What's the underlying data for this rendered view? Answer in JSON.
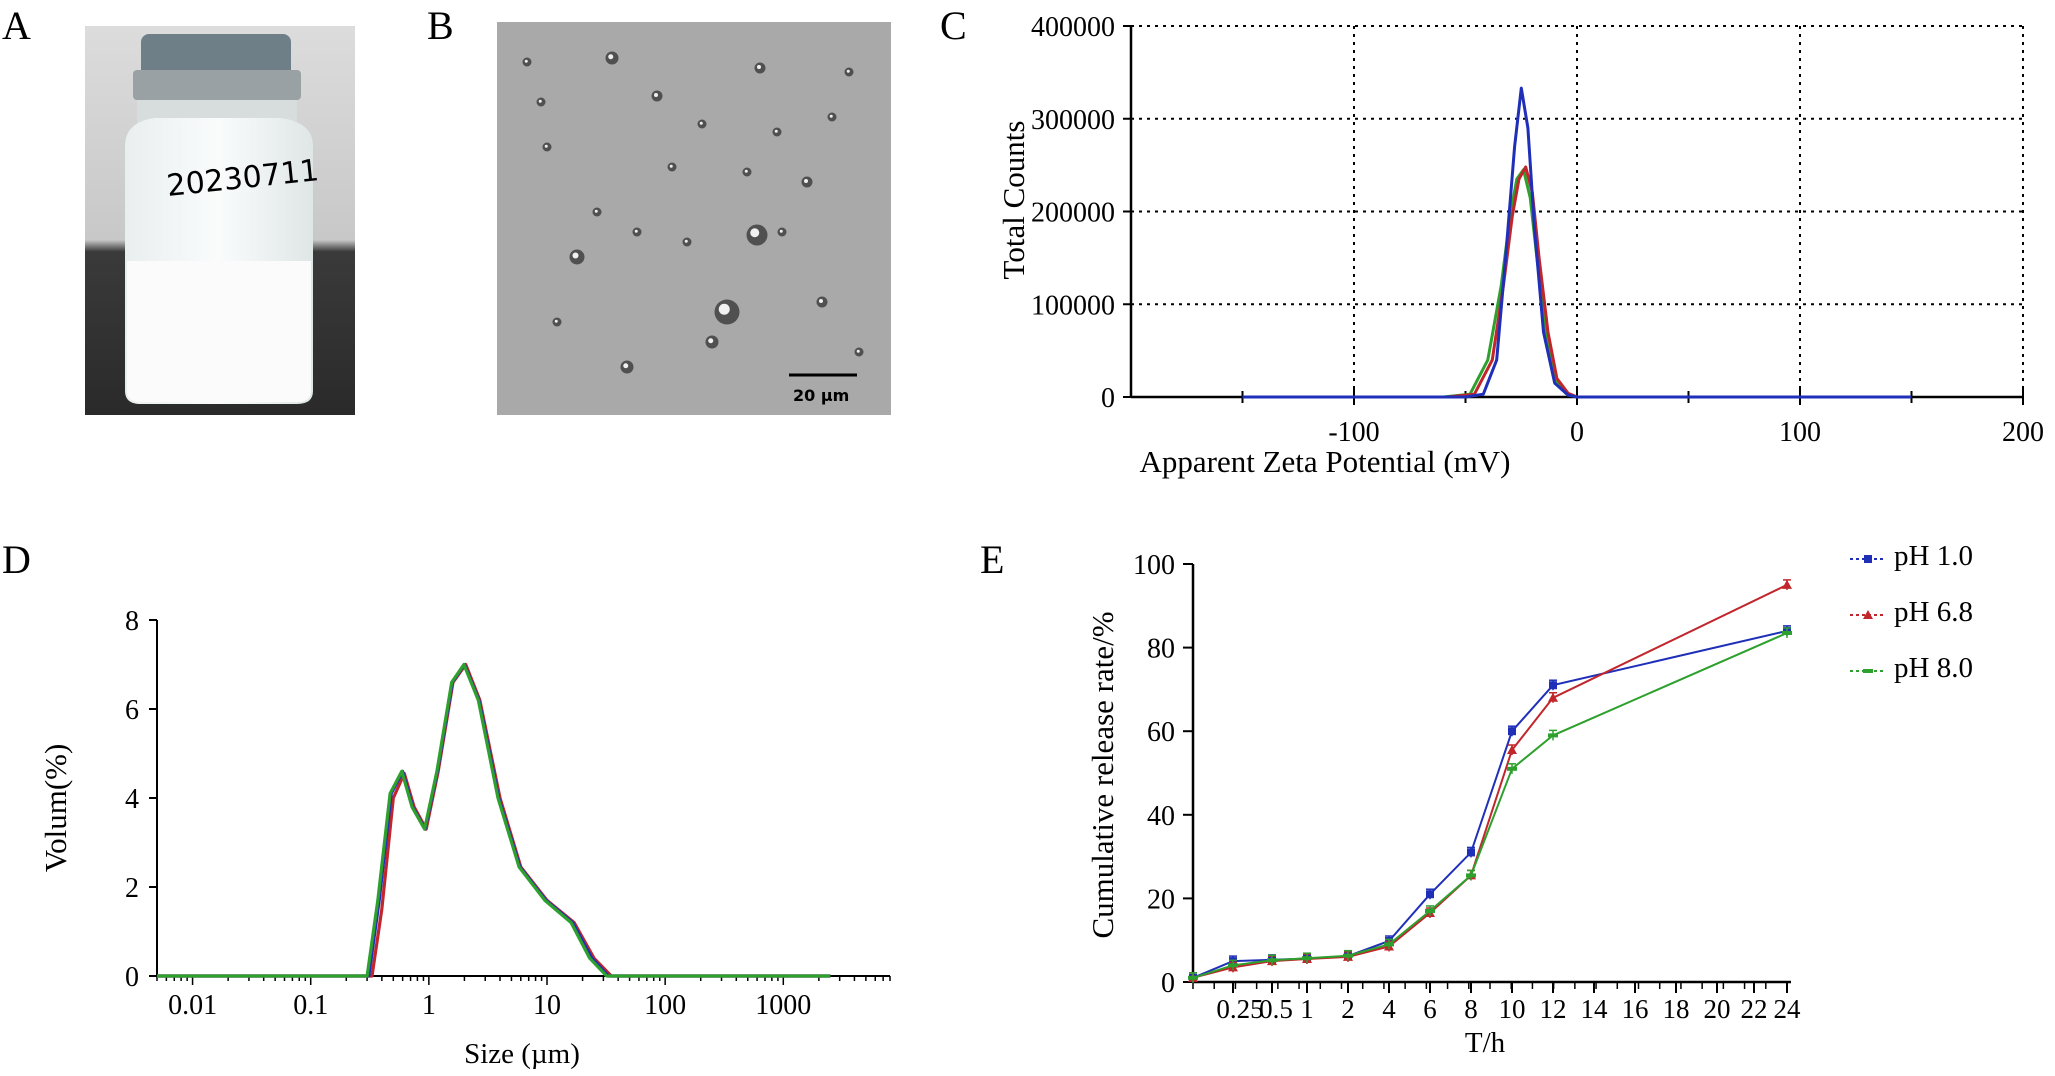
{
  "panels": {
    "a": {
      "letter": "A",
      "vial_label": "20230711"
    },
    "b": {
      "letter": "B",
      "scale_bar": "20 µm"
    },
    "c": {
      "letter": "C"
    },
    "d": {
      "letter": "D"
    },
    "e": {
      "letter": "E"
    }
  },
  "colors": {
    "blue": "#1f2fb8",
    "red": "#c0262b",
    "green": "#2ea02e",
    "grid": "#000000"
  },
  "chart_data": [
    {
      "id": "C",
      "type": "line",
      "xlabel": "Apparent Zeta Potential (mV)",
      "ylabel": "Total Counts",
      "xlim": [
        -200,
        200
      ],
      "ylim": [
        0,
        400000
      ],
      "x_ticks": [
        "-100",
        "0",
        "100",
        "200"
      ],
      "y_ticks": [
        "0",
        "100000",
        "200000",
        "300000",
        "400000"
      ],
      "grid": "dotted",
      "series": [
        {
          "color": "#2ea02e",
          "points": [
            [
              -150,
              0
            ],
            [
              -60,
              0
            ],
            [
              -48,
              3000
            ],
            [
              -40,
              40000
            ],
            [
              -34,
              120000
            ],
            [
              -30,
              195000
            ],
            [
              -27,
              235000
            ],
            [
              -24,
              245000
            ],
            [
              -21,
              215000
            ],
            [
              -18,
              150000
            ],
            [
              -14,
              70000
            ],
            [
              -10,
              20000
            ],
            [
              -5,
              4000
            ],
            [
              0,
              0
            ],
            [
              150,
              0
            ]
          ]
        },
        {
          "color": "#c0262b",
          "points": [
            [
              -150,
              0
            ],
            [
              -58,
              0
            ],
            [
              -46,
              3000
            ],
            [
              -38,
              40000
            ],
            [
              -33,
              120000
            ],
            [
              -29,
              195000
            ],
            [
              -26,
              235000
            ],
            [
              -23,
              248000
            ],
            [
              -20,
              220000
            ],
            [
              -17,
              150000
            ],
            [
              -13,
              70000
            ],
            [
              -9,
              20000
            ],
            [
              -4,
              4000
            ],
            [
              0,
              0
            ],
            [
              150,
              0
            ]
          ]
        },
        {
          "color": "#1f2fb8",
          "points": [
            [
              -150,
              0
            ],
            [
              -50,
              0
            ],
            [
              -42,
              3000
            ],
            [
              -36,
              40000
            ],
            [
              -32,
              150000
            ],
            [
              -28,
              270000
            ],
            [
              -25,
              333000
            ],
            [
              -22,
              290000
            ],
            [
              -19,
              180000
            ],
            [
              -15,
              70000
            ],
            [
              -10,
              15000
            ],
            [
              -4,
              2000
            ],
            [
              0,
              0
            ],
            [
              150,
              0
            ]
          ]
        }
      ]
    },
    {
      "id": "D",
      "type": "line",
      "xlabel": "Size (µm)",
      "ylabel": "Volum(%)",
      "xscale": "log",
      "xlim": [
        0.005,
        8000
      ],
      "ylim": [
        0,
        8
      ],
      "x_ticks": [
        "0.01",
        "0.1",
        "1",
        "10",
        "100",
        "1000"
      ],
      "y_ticks": [
        "0",
        "2",
        "4",
        "6",
        "8"
      ],
      "series": [
        {
          "color": "#c0262b",
          "points": [
            [
              0.005,
              0
            ],
            [
              0.33,
              0
            ],
            [
              0.4,
              1.5
            ],
            [
              0.5,
              4.0
            ],
            [
              0.62,
              4.55
            ],
            [
              0.75,
              3.8
            ],
            [
              0.95,
              3.3
            ],
            [
              1.2,
              4.6
            ],
            [
              1.6,
              6.6
            ],
            [
              2.05,
              7.0
            ],
            [
              2.7,
              6.2
            ],
            [
              4,
              4.0
            ],
            [
              6,
              2.45
            ],
            [
              10,
              1.7
            ],
            [
              17,
              1.2
            ],
            [
              25,
              0.4
            ],
            [
              35,
              0
            ],
            [
              2500,
              0
            ]
          ]
        },
        {
          "color": "#1f2fb8",
          "points": [
            [
              0.005,
              0
            ],
            [
              0.31,
              0
            ],
            [
              0.38,
              1.7
            ],
            [
              0.48,
              4.1
            ],
            [
              0.6,
              4.6
            ],
            [
              0.73,
              3.8
            ],
            [
              0.93,
              3.3
            ],
            [
              1.18,
              4.6
            ],
            [
              1.58,
              6.6
            ],
            [
              2.0,
              7.0
            ],
            [
              2.65,
              6.2
            ],
            [
              3.9,
              4.0
            ],
            [
              5.9,
              2.45
            ],
            [
              9.8,
              1.7
            ],
            [
              16.5,
              1.2
            ],
            [
              24,
              0.4
            ],
            [
              33,
              0
            ],
            [
              2500,
              0
            ]
          ]
        },
        {
          "color": "#2ea02e",
          "points": [
            [
              0.005,
              0
            ],
            [
              0.3,
              0
            ],
            [
              0.37,
              1.7
            ],
            [
              0.47,
              4.1
            ],
            [
              0.59,
              4.6
            ],
            [
              0.72,
              3.8
            ],
            [
              0.92,
              3.3
            ],
            [
              1.17,
              4.6
            ],
            [
              1.56,
              6.6
            ],
            [
              1.98,
              7.0
            ],
            [
              2.62,
              6.2
            ],
            [
              3.85,
              4.0
            ],
            [
              5.8,
              2.45
            ],
            [
              9.6,
              1.7
            ],
            [
              16,
              1.2
            ],
            [
              23,
              0.4
            ],
            [
              32,
              0
            ],
            [
              2500,
              0
            ]
          ]
        }
      ]
    },
    {
      "id": "E",
      "type": "line",
      "xlabel": "T/h",
      "ylabel": "Cumulative release rate/%",
      "xlim": [
        0,
        24
      ],
      "ylim": [
        0,
        100
      ],
      "x_ticks": [
        "0.25",
        "0.5",
        "1",
        "2",
        "4",
        "6",
        "8",
        "10",
        "12",
        "14",
        "16",
        "18",
        "20",
        "22",
        "24"
      ],
      "y_ticks": [
        "0",
        "20",
        "40",
        "60",
        "80",
        "100"
      ],
      "x": [
        0,
        0.25,
        0.5,
        1,
        2,
        4,
        6,
        8,
        10,
        12,
        24
      ],
      "series": [
        {
          "name": "pH 1.0",
          "color": "#1f2fb8",
          "marker": "square",
          "values": [
            1,
            5,
            5.3,
            5.6,
            6.2,
            9.8,
            21,
            31,
            60,
            71,
            84
          ]
        },
        {
          "name": "pH 6.8",
          "color": "#c0262b",
          "marker": "triangle",
          "values": [
            1,
            3.5,
            5,
            5.5,
            6,
            8.5,
            16.5,
            25.5,
            55.5,
            68,
            95
          ]
        },
        {
          "name": "pH 8.0",
          "color": "#2ea02e",
          "marker": "dash",
          "values": [
            1,
            4,
            5.2,
            5.7,
            6.3,
            9,
            17,
            25.5,
            51,
            59,
            83.5
          ]
        }
      ]
    }
  ]
}
